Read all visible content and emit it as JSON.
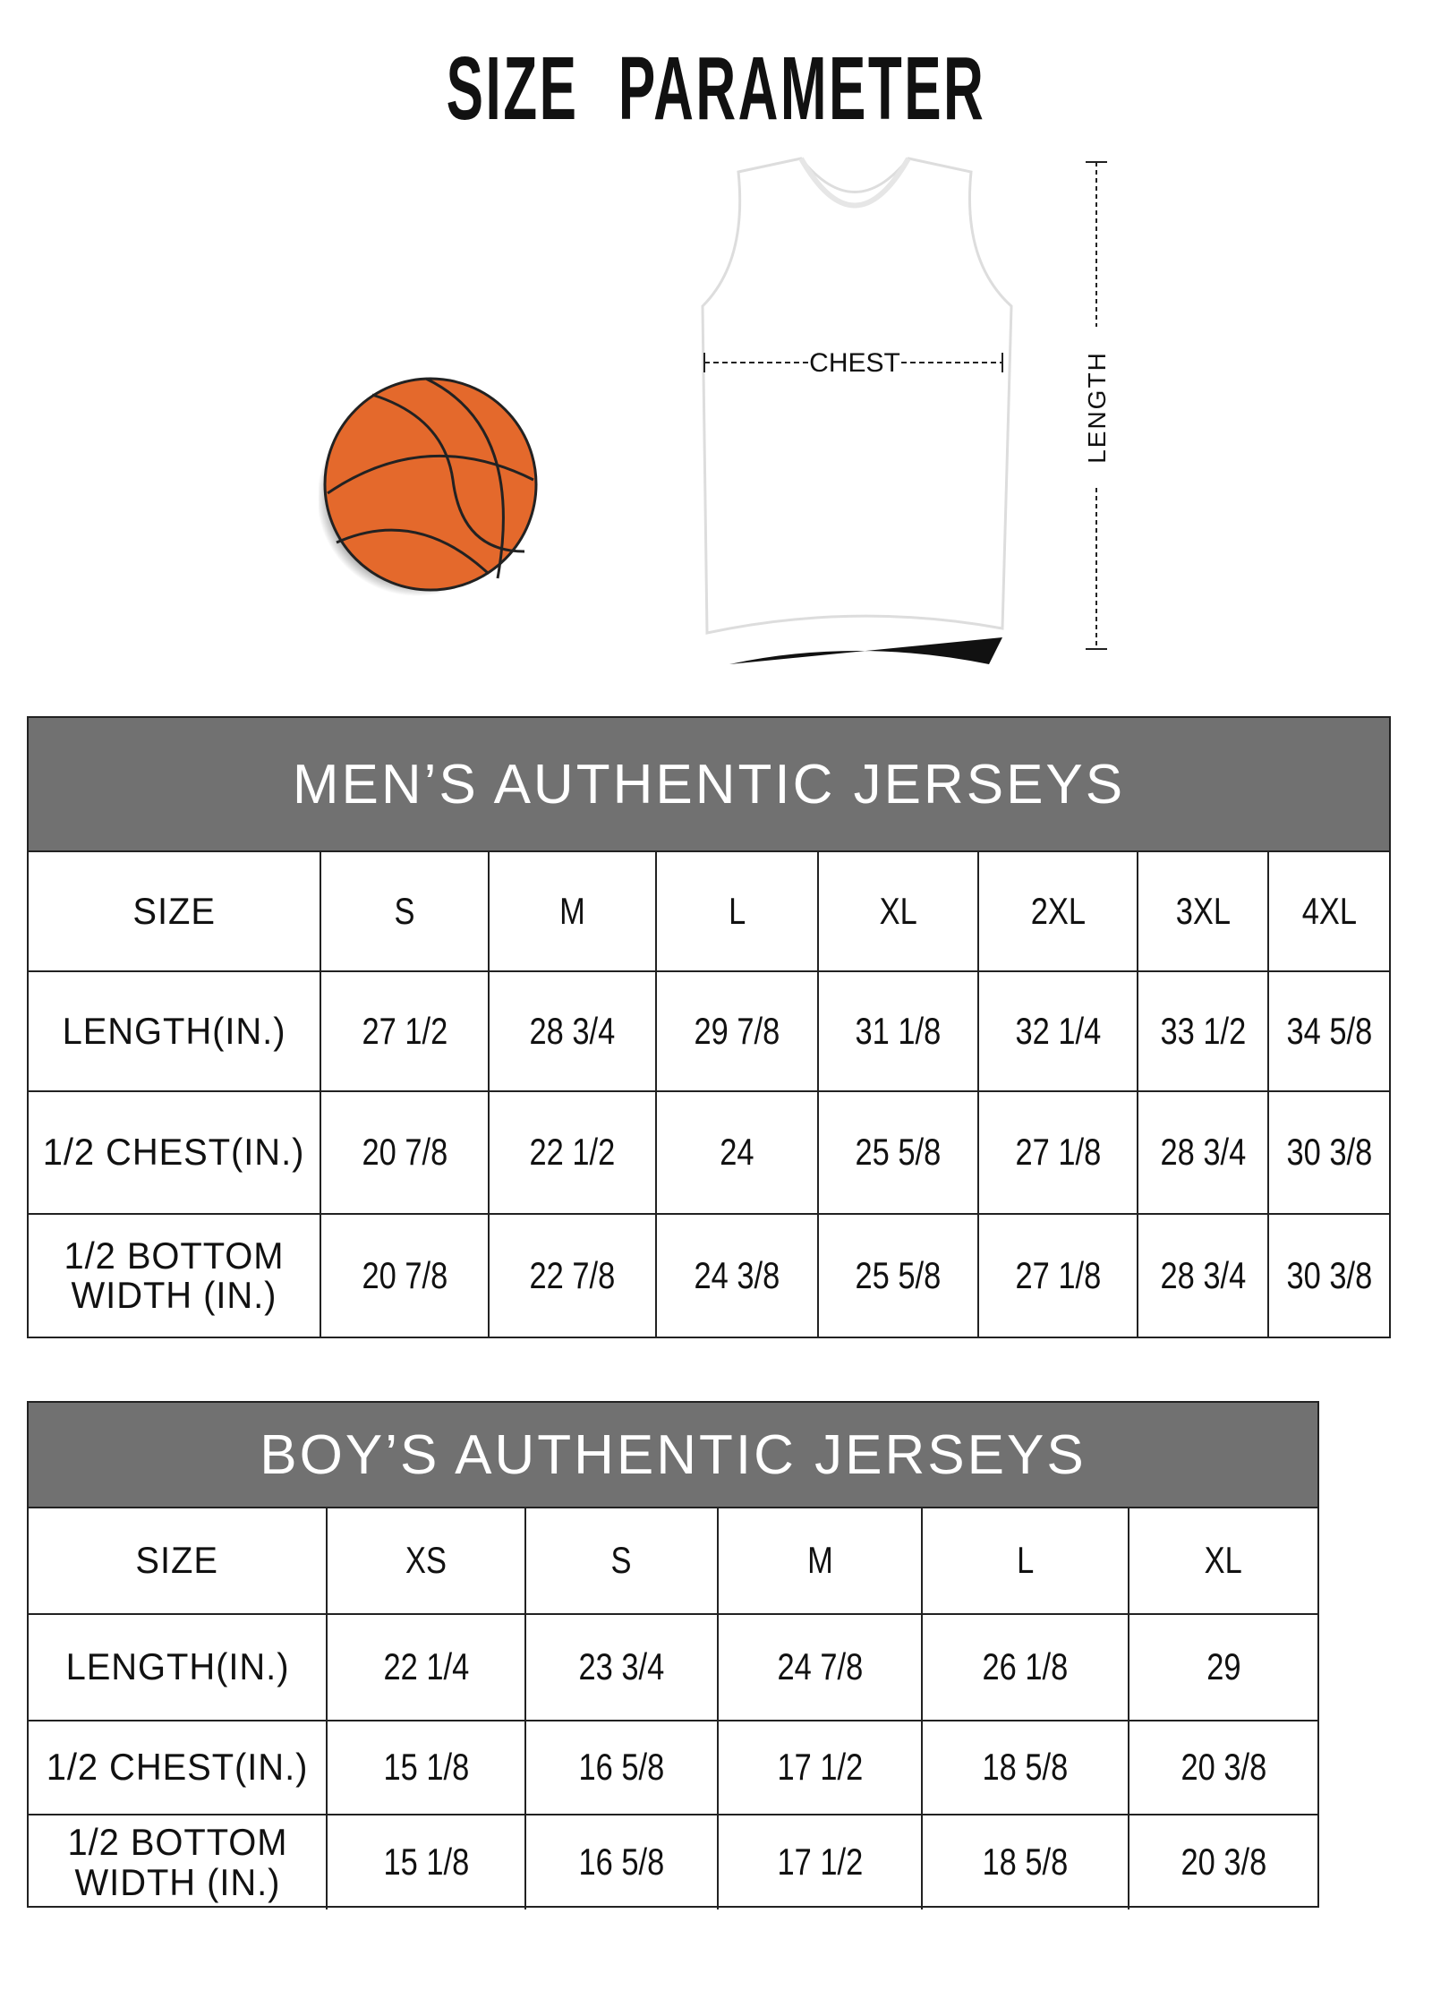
{
  "title": "SIZE PARAMETER",
  "diagram": {
    "chest_label": "CHEST",
    "length_label": "LENGTH",
    "ball_color": "#e4692c"
  },
  "men": {
    "title": "MEN’S AUTHENTIC JERSEYS",
    "header": [
      "SIZE",
      "S",
      "M",
      "L",
      "XL",
      "2XL",
      "3XL",
      "4XL"
    ],
    "rows": [
      [
        "LENGTH(IN.)",
        "27  1/2",
        "28  3/4",
        "29  7/8",
        "31  1/8",
        "32  1/4",
        "33  1/2",
        "34  5/8"
      ],
      [
        "1/2 CHEST(IN.)",
        "20  7/8",
        "22  1/2",
        "24",
        "25  5/8",
        "27  1/8",
        "28  3/4",
        "30  3/8"
      ],
      [
        "1/2 BOTTOM\nWIDTH  (IN.)",
        "20  7/8",
        "22  7/8",
        "24  3/8",
        "25  5/8",
        "27  1/8",
        "28  3/4",
        "30  3/8"
      ]
    ]
  },
  "boy": {
    "title": "BOY’S AUTHENTIC JERSEYS",
    "header": [
      "SIZE",
      "XS",
      "S",
      "M",
      "L",
      "XL"
    ],
    "rows": [
      [
        "LENGTH(IN.)",
        "22  1/4",
        "23  3/4",
        "24  7/8",
        "26  1/8",
        "29"
      ],
      [
        "1/2 CHEST(IN.)",
        "15  1/8",
        "16  5/8",
        "17  1/2",
        "18  5/8",
        "20  3/8"
      ],
      [
        "1/2 BOTTOM\nWIDTH  (IN.)",
        "15  1/8",
        "16  5/8",
        "17  1/2",
        "18  5/8",
        "20  3/8"
      ]
    ]
  }
}
